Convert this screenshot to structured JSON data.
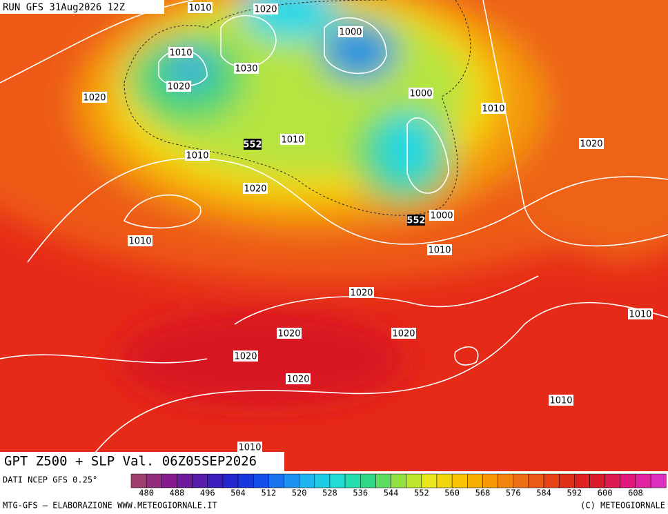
{
  "header": {
    "run": "RUN GFS 31Aug2026 12Z"
  },
  "title": "GPT Z500 + SLP Val. 06Z05SEP2026",
  "source": "DATI NCEP GFS 0.25°",
  "legend": {
    "ticks": [
      480,
      488,
      496,
      504,
      512,
      520,
      528,
      536,
      544,
      552,
      560,
      568,
      576,
      584,
      592,
      600,
      608
    ]
  },
  "isobar_labels": [
    1010,
    1020,
    1000,
    1010,
    1030,
    1020,
    1020,
    1000,
    1010,
    1010,
    552,
    1020,
    1010,
    1020,
    552,
    1000,
    1010,
    1010,
    1020,
    1010,
    1020,
    1020,
    1020,
    1020,
    1010,
    1010
  ],
  "footer": {
    "left": "MTG-GFS — ELABORAZIONE WWW.METEOGIORNALE.IT",
    "right": "(C) METEOGIORNALE"
  }
}
